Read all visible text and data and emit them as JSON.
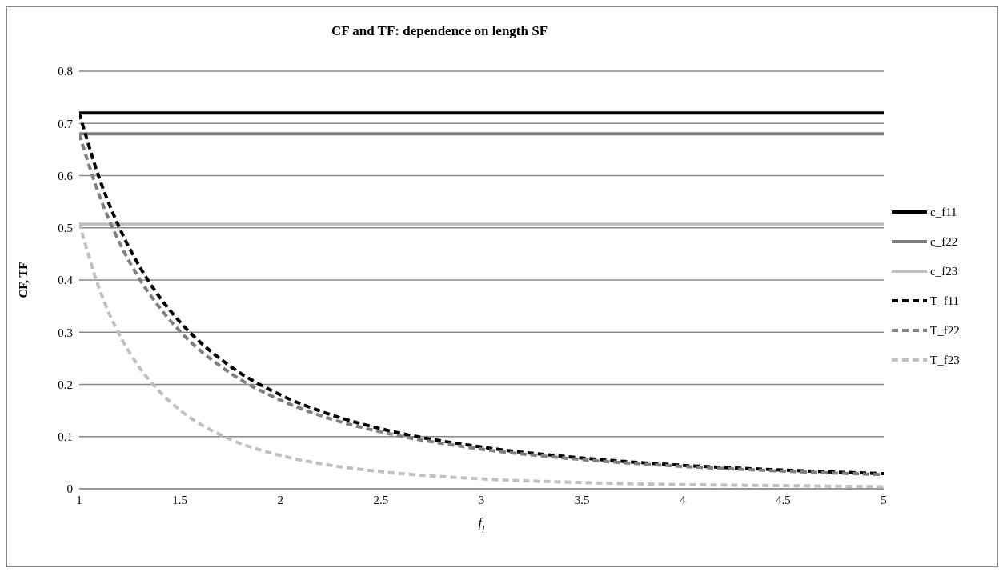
{
  "chart_data": {
    "type": "line",
    "title": "CF and TF: dependence on length SF",
    "xlabel": "f$_{l}$",
    "ylabel": "CF, TF",
    "x": [
      1,
      1.1,
      1.2,
      1.3,
      1.4,
      1.5,
      1.75,
      2,
      2.25,
      2.5,
      3,
      3.5,
      4,
      4.5,
      5
    ],
    "xlim": [
      1,
      5
    ],
    "xticks": [
      1,
      1.5,
      2,
      2.5,
      3,
      3.5,
      4,
      4.5,
      5
    ],
    "ylim": [
      0,
      0.8
    ],
    "yticks": [
      0,
      0.1,
      0.2,
      0.3,
      0.4,
      0.5,
      0.6,
      0.7,
      0.8
    ],
    "grid": "y",
    "legend": "right",
    "marker": "none",
    "series": [
      {
        "name": "c_f11",
        "color": "#000000",
        "line_style": "solid",
        "values": [
          0.72,
          0.72,
          0.72,
          0.72,
          0.72,
          0.72,
          0.72,
          0.72,
          0.72,
          0.72,
          0.72,
          0.72,
          0.72,
          0.72,
          0.72
        ]
      },
      {
        "name": "c_f22",
        "color": "#808080",
        "line_style": "solid",
        "values": [
          0.68,
          0.68,
          0.68,
          0.68,
          0.68,
          0.68,
          0.68,
          0.68,
          0.68,
          0.68,
          0.68,
          0.68,
          0.68,
          0.68,
          0.68
        ]
      },
      {
        "name": "c_f23",
        "color": "#c0c0c0",
        "line_style": "solid",
        "values": [
          0.507,
          0.507,
          0.507,
          0.507,
          0.507,
          0.507,
          0.507,
          0.507,
          0.507,
          0.507,
          0.507,
          0.507,
          0.507,
          0.507,
          0.507
        ]
      },
      {
        "name": "T_f11",
        "color": "#000000",
        "line_style": "dashed",
        "values": [
          0.72,
          0.595,
          0.5,
          0.426,
          0.367,
          0.32,
          0.235,
          0.18,
          0.142,
          0.115,
          0.08,
          0.059,
          0.045,
          0.036,
          0.029
        ]
      },
      {
        "name": "T_f22",
        "color": "#808080",
        "line_style": "dashed",
        "values": [
          0.68,
          0.562,
          0.472,
          0.402,
          0.347,
          0.302,
          0.222,
          0.17,
          0.134,
          0.109,
          0.076,
          0.056,
          0.043,
          0.034,
          0.027
        ]
      },
      {
        "name": "T_f23",
        "color": "#c0c0c0",
        "line_style": "dashed",
        "values": [
          0.51,
          0.383,
          0.295,
          0.232,
          0.186,
          0.151,
          0.095,
          0.064,
          0.045,
          0.033,
          0.019,
          0.012,
          0.008,
          0.006,
          0.004
        ]
      }
    ]
  }
}
